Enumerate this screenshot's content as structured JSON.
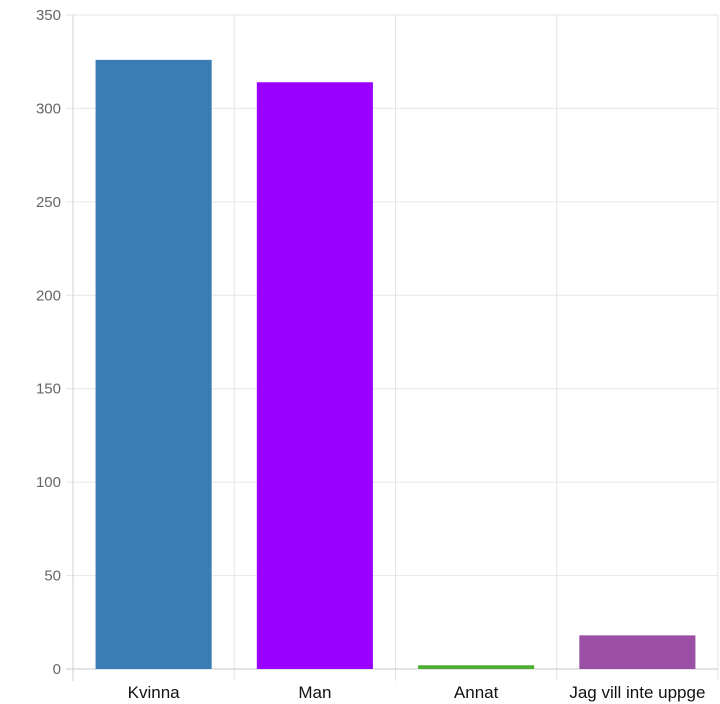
{
  "chart_data": {
    "type": "bar",
    "categories": [
      "Kvinna",
      "Man",
      "Annat",
      "Jag vill inte uppge"
    ],
    "values": [
      326,
      314,
      2,
      18
    ],
    "colors": [
      "#3a7db5",
      "#9900ff",
      "#4caf32",
      "#9b4fa5"
    ],
    "ylim": [
      0,
      350
    ],
    "yticks": [
      0,
      50,
      100,
      150,
      200,
      250,
      300,
      350
    ],
    "grid": true,
    "title": "",
    "xlabel": "",
    "ylabel": ""
  }
}
